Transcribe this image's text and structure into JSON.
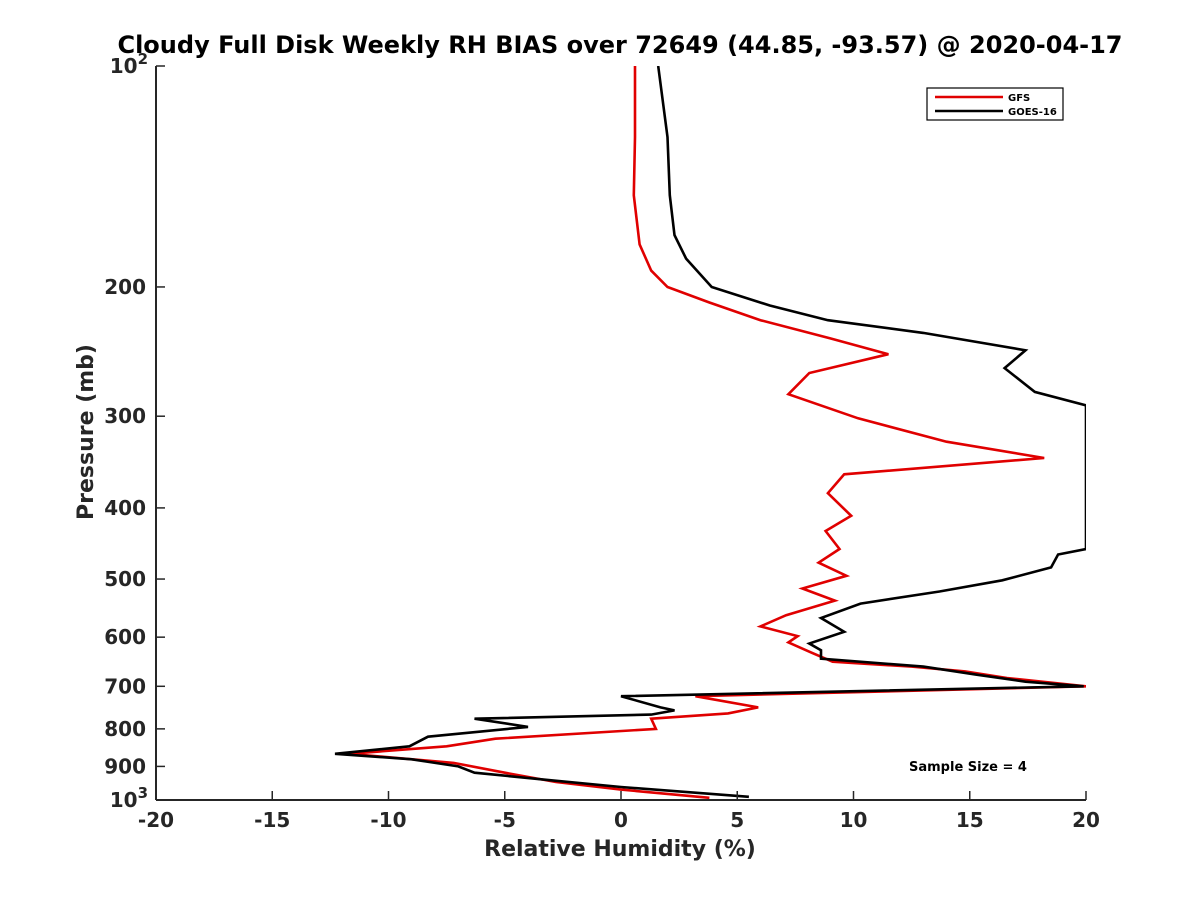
{
  "chart_data": {
    "type": "line",
    "title": "Cloudy Full Disk Weekly RH BIAS over 72649 (44.85, -93.57) @ 2020-04-17",
    "xlabel": "Relative Humidity (%)",
    "ylabel": "Pressure (mb)",
    "xlim": [
      -20,
      20
    ],
    "ylim": [
      100,
      1000
    ],
    "y_scale": "log",
    "y_reversed": true,
    "grid": false,
    "legend_position": "top-right",
    "x_ticks": [
      -20,
      -15,
      -10,
      -5,
      0,
      5,
      10,
      15,
      20
    ],
    "x_tick_labels": [
      "-20",
      "-15",
      "-10",
      "-5",
      "0",
      "5",
      "10",
      "15",
      "20"
    ],
    "y_ticks": [
      200,
      300,
      400,
      500,
      600,
      700,
      800,
      900
    ],
    "y_tick_labels": [
      "200",
      "300",
      "400",
      "500",
      "600",
      "700",
      "800",
      "900"
    ],
    "y_end_labels": [
      {
        "base": "10",
        "exp": "2",
        "value": 100
      },
      {
        "base": "10",
        "exp": "3",
        "value": 1000
      }
    ],
    "annotation": "Sample Size = 4",
    "series": [
      {
        "name": "GFS",
        "color": "#e00000",
        "points": [
          [
            0.6,
            100
          ],
          [
            0.6,
            125
          ],
          [
            0.55,
            150
          ],
          [
            0.8,
            175
          ],
          [
            1.3,
            190
          ],
          [
            2.0,
            200
          ],
          [
            3.8,
            210
          ],
          [
            6.0,
            222
          ],
          [
            9.0,
            235
          ],
          [
            11.5,
            247
          ],
          [
            8.1,
            262
          ],
          [
            7.2,
            280
          ],
          [
            10.2,
            302
          ],
          [
            14.0,
            325
          ],
          [
            18.2,
            342
          ],
          [
            9.6,
            360
          ],
          [
            8.9,
            382
          ],
          [
            9.9,
            410
          ],
          [
            8.8,
            430
          ],
          [
            9.4,
            455
          ],
          [
            8.5,
            475
          ],
          [
            9.7,
            495
          ],
          [
            7.8,
            515
          ],
          [
            9.2,
            535
          ],
          [
            7.1,
            560
          ],
          [
            6.0,
            580
          ],
          [
            7.6,
            598
          ],
          [
            7.2,
            610
          ],
          [
            8.2,
            630
          ],
          [
            9.1,
            648
          ],
          [
            12.5,
            658
          ],
          [
            14.8,
            668
          ],
          [
            16.6,
            682
          ],
          [
            20.0,
            700
          ],
          [
            3.2,
            722
          ],
          [
            5.9,
            748
          ],
          [
            4.6,
            762
          ],
          [
            1.3,
            775
          ],
          [
            1.5,
            800
          ],
          [
            -5.4,
            825
          ],
          [
            -7.5,
            845
          ],
          [
            -11.7,
            865
          ],
          [
            -7.2,
            890
          ],
          [
            -5.0,
            918
          ],
          [
            -2.8,
            945
          ],
          [
            0.0,
            968
          ],
          [
            3.8,
            993
          ]
        ]
      },
      {
        "name": "GOES-16",
        "color": "#000000",
        "points": [
          [
            1.6,
            100
          ],
          [
            2.0,
            125
          ],
          [
            2.1,
            150
          ],
          [
            2.3,
            170
          ],
          [
            2.8,
            183
          ],
          [
            3.9,
            200
          ],
          [
            6.4,
            212
          ],
          [
            8.9,
            222
          ],
          [
            13.0,
            231
          ],
          [
            17.4,
            244
          ],
          [
            16.5,
            258
          ],
          [
            17.8,
            278
          ],
          [
            20.0,
            290
          ],
          [
            20.0,
            455
          ],
          [
            18.8,
            463
          ],
          [
            18.5,
            482
          ],
          [
            16.4,
            502
          ],
          [
            13.7,
            520
          ],
          [
            10.3,
            540
          ],
          [
            8.6,
            565
          ],
          [
            9.6,
            590
          ],
          [
            8.1,
            612
          ],
          [
            8.6,
            625
          ],
          [
            8.6,
            642
          ],
          [
            13.0,
            658
          ],
          [
            15.3,
            675
          ],
          [
            17.4,
            690
          ],
          [
            19.9,
            700
          ],
          [
            0.0,
            722
          ],
          [
            1.7,
            748
          ],
          [
            2.3,
            755
          ],
          [
            1.3,
            765
          ],
          [
            -6.3,
            775
          ],
          [
            -4.0,
            795
          ],
          [
            -8.3,
            820
          ],
          [
            -9.1,
            845
          ],
          [
            -12.3,
            865
          ],
          [
            -9.0,
            880
          ],
          [
            -7.0,
            900
          ],
          [
            -6.3,
            918
          ],
          [
            -3.0,
            940
          ],
          [
            0.0,
            960
          ],
          [
            5.5,
            990
          ]
        ]
      }
    ]
  }
}
